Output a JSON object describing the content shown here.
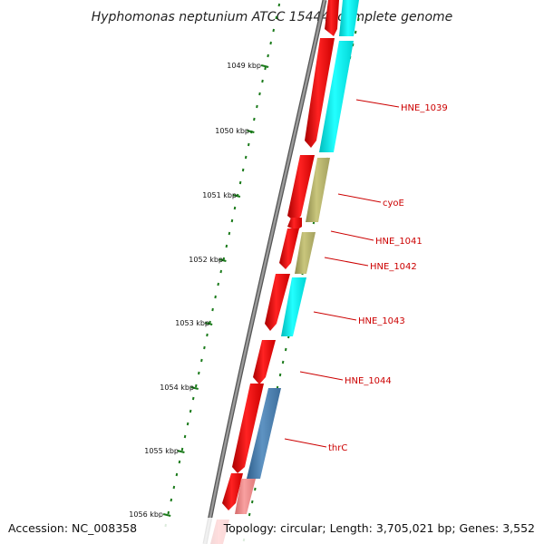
{
  "title": "Hyphomonas neptunium ATCC 15444, complete genome",
  "accession": "Accession: NC_008358",
  "topology": "Topology: circular; Length: 3,705,021 bp; Genes: 3,552",
  "colors": {
    "backbone": "#8a8a8a",
    "forward_cds": "#ee0000",
    "reverse_cds_cyan": "#00eeee",
    "reverse_cds_khaki": "#b7b46a",
    "reverse_cds_steel": "#4a7fae",
    "reverse_cds_pink": "#ee8a8a",
    "tick_marks": "#1a7a1a",
    "label_text": "#cc0000"
  },
  "kbp_labels": [
    "1049 kbp",
    "1050 kbp",
    "1051 kbp",
    "1052 kbp",
    "1053 kbp",
    "1054 kbp",
    "1055 kbp",
    "1056 kbp"
  ],
  "gene_labels": [
    "HNE_1039",
    "cyoE",
    "HNE_1041",
    "HNE_1042",
    "HNE_1043",
    "HNE_1044",
    "thrC"
  ]
}
